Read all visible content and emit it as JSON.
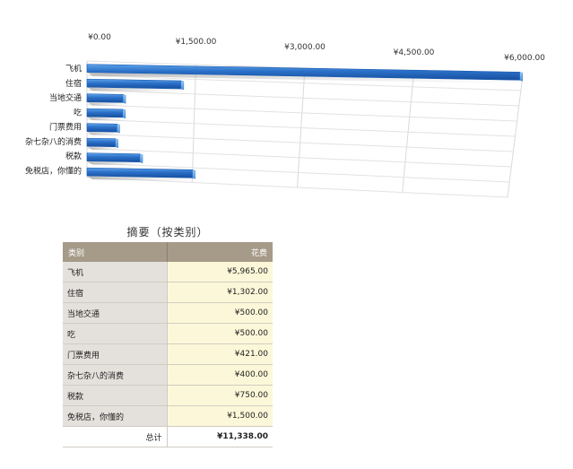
{
  "chart_data": {
    "type": "bar",
    "orientation": "horizontal",
    "style": "3d",
    "categories": [
      "飞机",
      "住宿",
      "当地交通",
      "吃",
      "门票费用",
      "杂七杂八的消费",
      "税款",
      "免税店，你懂的"
    ],
    "values": [
      5965,
      1302,
      500,
      500,
      421,
      400,
      750,
      1500
    ],
    "xlim": [
      0,
      6000
    ],
    "ticks": [
      0,
      1500,
      3000,
      4500,
      6000
    ],
    "tick_labels": [
      "¥0.00",
      "¥1,500.00",
      "¥3,000.00",
      "¥4,500.00",
      "¥6,000.00"
    ],
    "grid": true,
    "bar_color": "#2a6fc7"
  },
  "summary": {
    "title": "摘要（按类别）",
    "col_category": "类别",
    "col_cost": "花费",
    "rows": [
      {
        "category": "飞机",
        "cost": "¥5,965.00"
      },
      {
        "category": "住宿",
        "cost": "¥1,302.00"
      },
      {
        "category": "当地交通",
        "cost": "¥500.00"
      },
      {
        "category": "吃",
        "cost": "¥500.00"
      },
      {
        "category": "门票费用",
        "cost": "¥421.00"
      },
      {
        "category": "杂七杂八的消费",
        "cost": "¥400.00"
      },
      {
        "category": "税款",
        "cost": "¥750.00"
      },
      {
        "category": "免税店，你懂的",
        "cost": "¥1,500.00"
      }
    ],
    "total_label": "总计",
    "total_value": "¥11,338.00"
  }
}
